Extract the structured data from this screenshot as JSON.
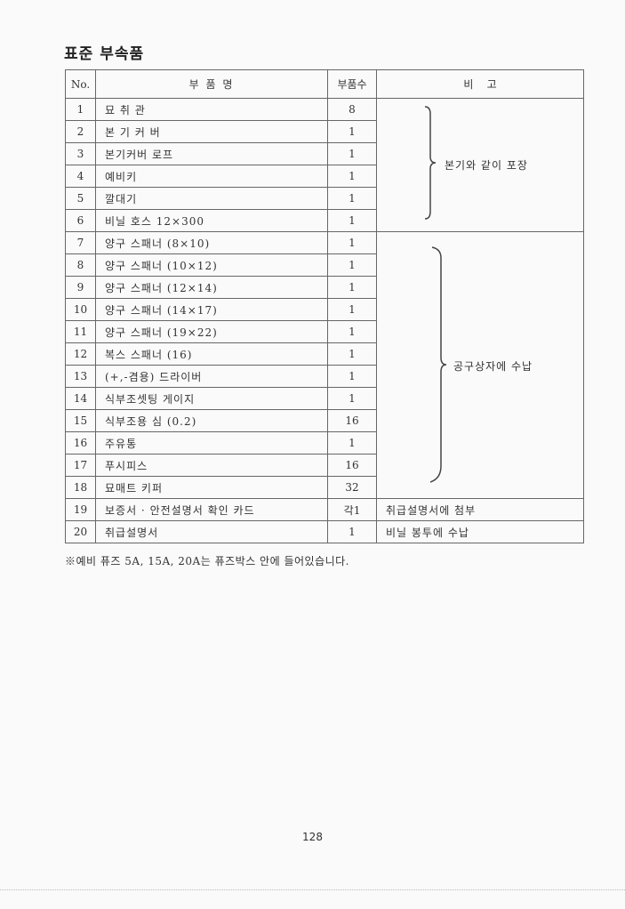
{
  "title": "표준 부속품",
  "table": {
    "headers": [
      "No.",
      "부 품 명",
      "부품수",
      "비    고"
    ],
    "rows": [
      {
        "no": "1",
        "name": "묘 취 관",
        "qty": "8"
      },
      {
        "no": "2",
        "name": "본 기 커 버",
        "qty": "1"
      },
      {
        "no": "3",
        "name": "본기커버 로프",
        "qty": "1"
      },
      {
        "no": "4",
        "name": "예비키",
        "qty": "1"
      },
      {
        "no": "5",
        "name": "깔대기",
        "qty": "1"
      },
      {
        "no": "6",
        "name": "비닐 호스 12×300",
        "qty": "1"
      },
      {
        "no": "7",
        "name": "양구 스패너 (8×10)",
        "qty": "1"
      },
      {
        "no": "8",
        "name": "양구 스패너 (10×12)",
        "qty": "1"
      },
      {
        "no": "9",
        "name": "양구 스패너 (12×14)",
        "qty": "1"
      },
      {
        "no": "10",
        "name": "양구 스패너 (14×17)",
        "qty": "1"
      },
      {
        "no": "11",
        "name": "양구 스패너 (19×22)",
        "qty": "1"
      },
      {
        "no": "12",
        "name": "복스 스패너 (16)",
        "qty": "1"
      },
      {
        "no": "13",
        "name": "(+,-겸용) 드라이버",
        "qty": "1"
      },
      {
        "no": "14",
        "name": "식부조셋팅 게이지",
        "qty": "1"
      },
      {
        "no": "15",
        "name": "식부조용 심 (0.2)",
        "qty": "16"
      },
      {
        "no": "16",
        "name": "주유통",
        "qty": "1"
      },
      {
        "no": "17",
        "name": "푸시피스",
        "qty": "16"
      },
      {
        "no": "18",
        "name": "묘매트 키퍼",
        "qty": "32"
      },
      {
        "no": "19",
        "name": "보증서 · 안전설명서 확인 카드",
        "qty": "각1",
        "remark": "취급설명서에 첨부"
      },
      {
        "no": "20",
        "name": "취급설명서",
        "qty": "1",
        "remark": "비닐 봉투에 수납"
      }
    ],
    "group_remarks": [
      "본기와 같이 포장",
      "공구상자에 수납"
    ]
  },
  "note": "※예비 퓨즈 5A, 15A, 20A는 퓨즈박스 안에 들어있습니다.",
  "page_number": "128"
}
